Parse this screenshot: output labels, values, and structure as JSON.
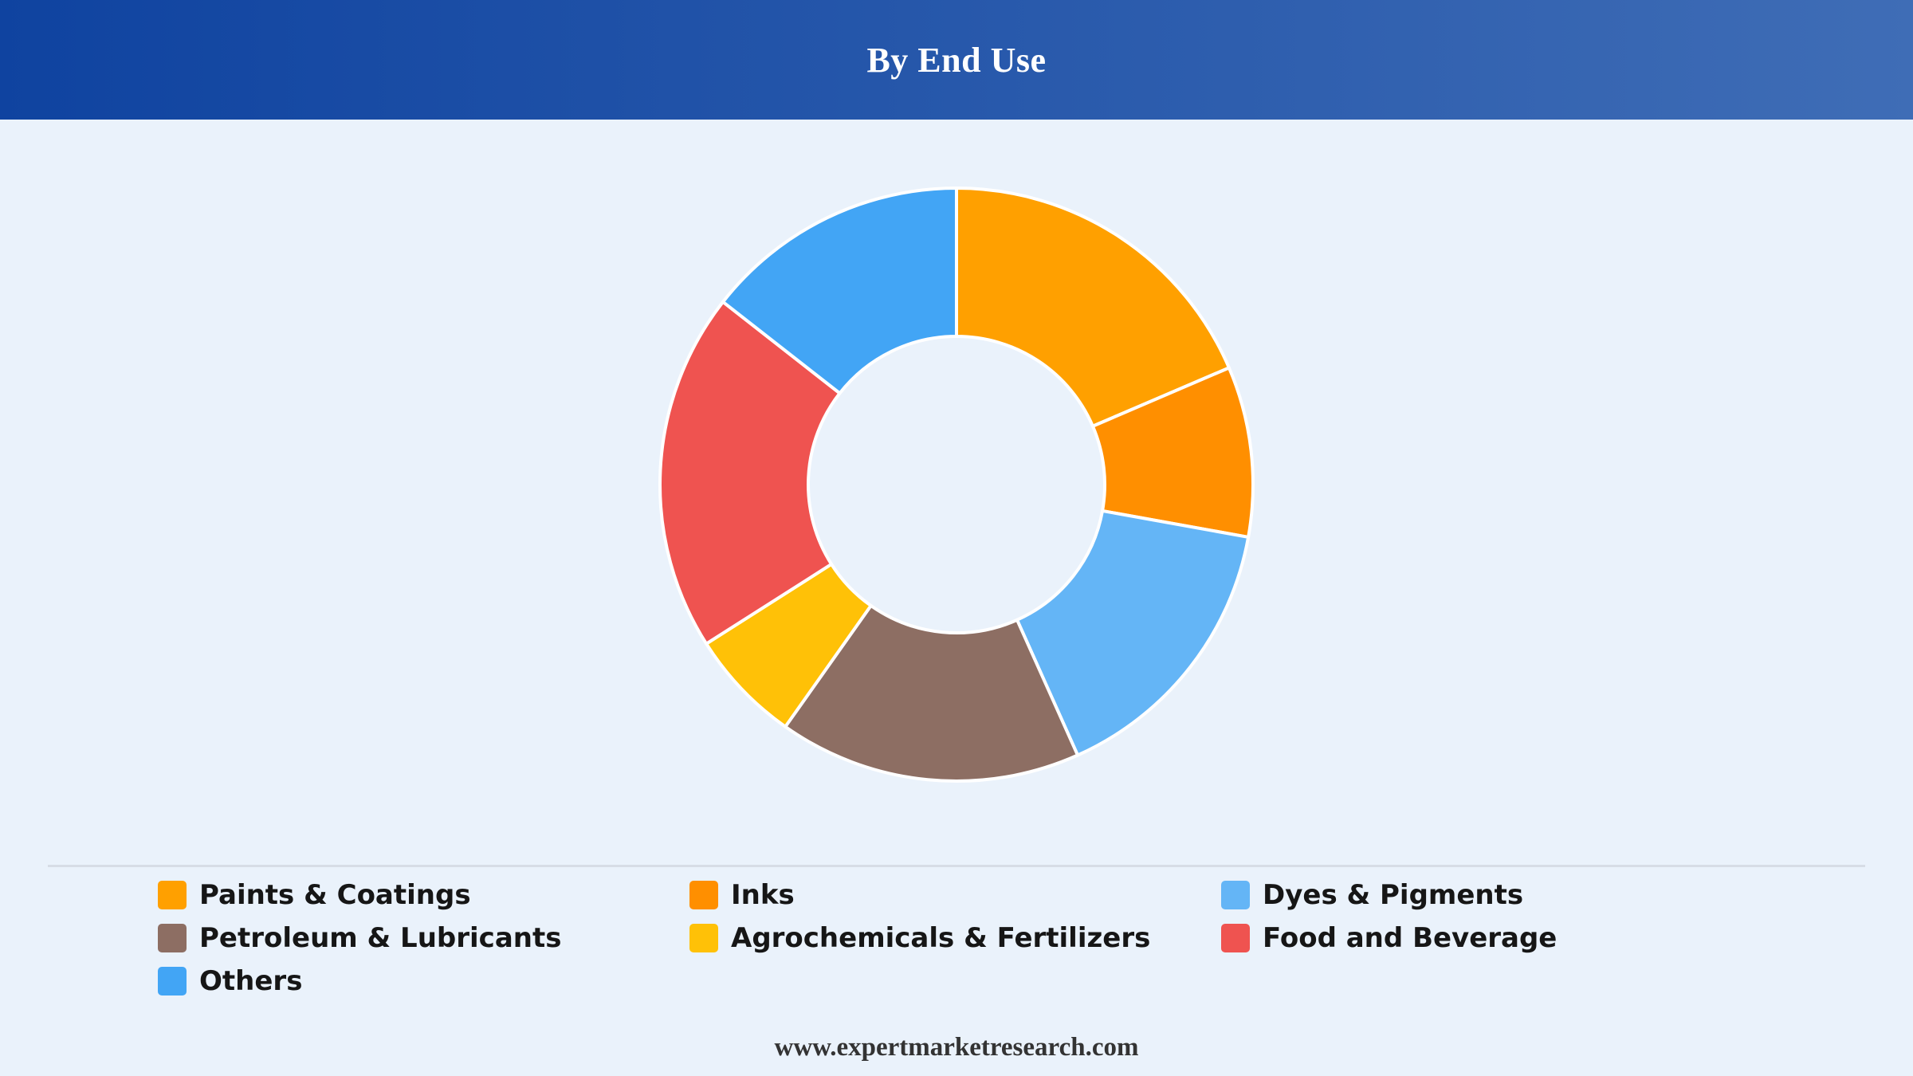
{
  "header": {
    "title": "By End Use"
  },
  "chart_data": {
    "type": "pie",
    "donut": true,
    "title": "By End Use",
    "categories": [
      "Paints & Coatings",
      "Inks",
      "Dyes & Pigments",
      "Petroleum & Lubricants",
      "Agrochemicals & Fertilizers",
      "Food and Beverage",
      "Others"
    ],
    "values": [
      18,
      9,
      15,
      16,
      6,
      19,
      14
    ],
    "colors": [
      "#ffa000",
      "#ff8f00",
      "#64b5f6",
      "#8d6e63",
      "#ffc107",
      "#ef5350",
      "#42a5f5"
    ],
    "slice_order": [
      "Paints & Coatings",
      "Inks",
      "Dyes & Pigments",
      "Petroleum & Lubricants",
      "Agrochemicals & Fertilizers",
      "Food and Beverage",
      "Others"
    ],
    "legend_position": "bottom"
  },
  "legend": {
    "items": [
      {
        "label": "Paints & Coatings",
        "color": "#ffa000"
      },
      {
        "label": "Inks",
        "color": "#ff8f00"
      },
      {
        "label": "Dyes & Pigments",
        "color": "#64b5f6"
      },
      {
        "label": "Petroleum & Lubricants",
        "color": "#8d6e63"
      },
      {
        "label": "Agrochemicals & Fertilizers",
        "color": "#ffc107"
      },
      {
        "label": "Food and Beverage",
        "color": "#ef5350"
      },
      {
        "label": "Others",
        "color": "#42a5f5"
      }
    ]
  },
  "footer": {
    "source": "www.expertmarketresearch.com"
  },
  "colors": {
    "header_start": "#0f43a0",
    "header_end": "#3f6db6",
    "background": "#eaf2fb"
  }
}
